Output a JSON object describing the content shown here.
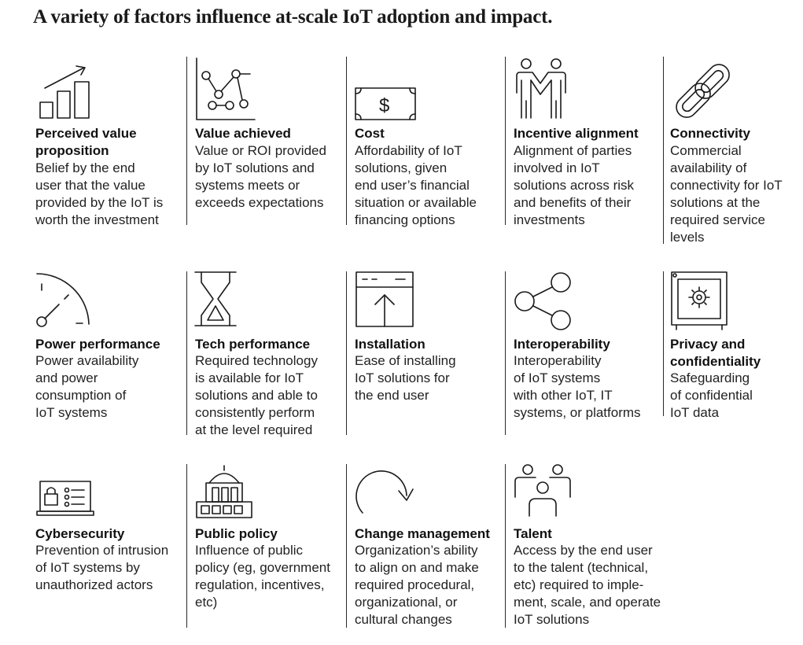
{
  "title": "A variety of factors influence at-scale IoT adoption and impact.",
  "factors": [
    {
      "label": "Perceived value\nproposition",
      "desc": "Belief by the end\nuser that the value\nprovided by the IoT is\nworth the investment",
      "icon": "bar-chart-growth-icon"
    },
    {
      "label": "Value achieved",
      "desc": "Value or ROI provided\nby IoT solutions and\nsystems meets or\nexceeds expectations",
      "icon": "connected-nodes-icon"
    },
    {
      "label": "Cost",
      "desc": "Affordability of IoT\nsolutions, given\nend user’s financial\nsituation or available\nfinancing options",
      "icon": "dollar-bill-icon"
    },
    {
      "label": "Incentive alignment",
      "desc": "Alignment of parties\ninvolved in IoT\nsolutions across risk\nand benefits of their\ninvestments",
      "icon": "people-holding-hands-icon"
    },
    {
      "label": "Connectivity",
      "desc": "Commercial\navailability of\nconnectivity for IoT\nsolutions at the\nrequired service\nlevels",
      "icon": "chain-link-icon"
    },
    {
      "label": "Power performance",
      "desc": "Power availability\nand power\nconsumption of\nIoT systems",
      "icon": "gauge-icon"
    },
    {
      "label": "Tech performance",
      "desc": "Required technology\nis available for IoT\nsolutions and able to\nconsistently perform\nat the level required",
      "icon": "hourglass-icon"
    },
    {
      "label": "Installation",
      "desc": "Ease of installing\nIoT solutions for\nthe end user",
      "icon": "window-upload-icon"
    },
    {
      "label": "Interoperability",
      "desc": "Interoperability\nof IoT systems\nwith other IoT, IT\nsystems, or platforms",
      "icon": "share-network-icon"
    },
    {
      "label": "Privacy and\nconfidentiality",
      "desc": "Safeguarding\nof confidential\nIoT data",
      "icon": "safe-icon"
    },
    {
      "label": "Cybersecurity",
      "desc": "Prevention of intrusion\nof IoT systems by\nunauthorized actors",
      "icon": "locked-laptop-icon"
    },
    {
      "label": "Public policy",
      "desc": "Influence of public\npolicy (eg, government\nregulation, incentives,\netc)",
      "icon": "government-building-icon"
    },
    {
      "label": "Change management",
      "desc": "Organization’s ability\nto align on and make\nrequired procedural,\norganizational, or\ncultural changes",
      "icon": "circular-arrow-icon"
    },
    {
      "label": "Talent",
      "desc": "Access by the end user\nto the talent (technical,\netc) required to imple-\nment, scale, and operate\nIoT solutions",
      "icon": "team-people-icon"
    }
  ]
}
